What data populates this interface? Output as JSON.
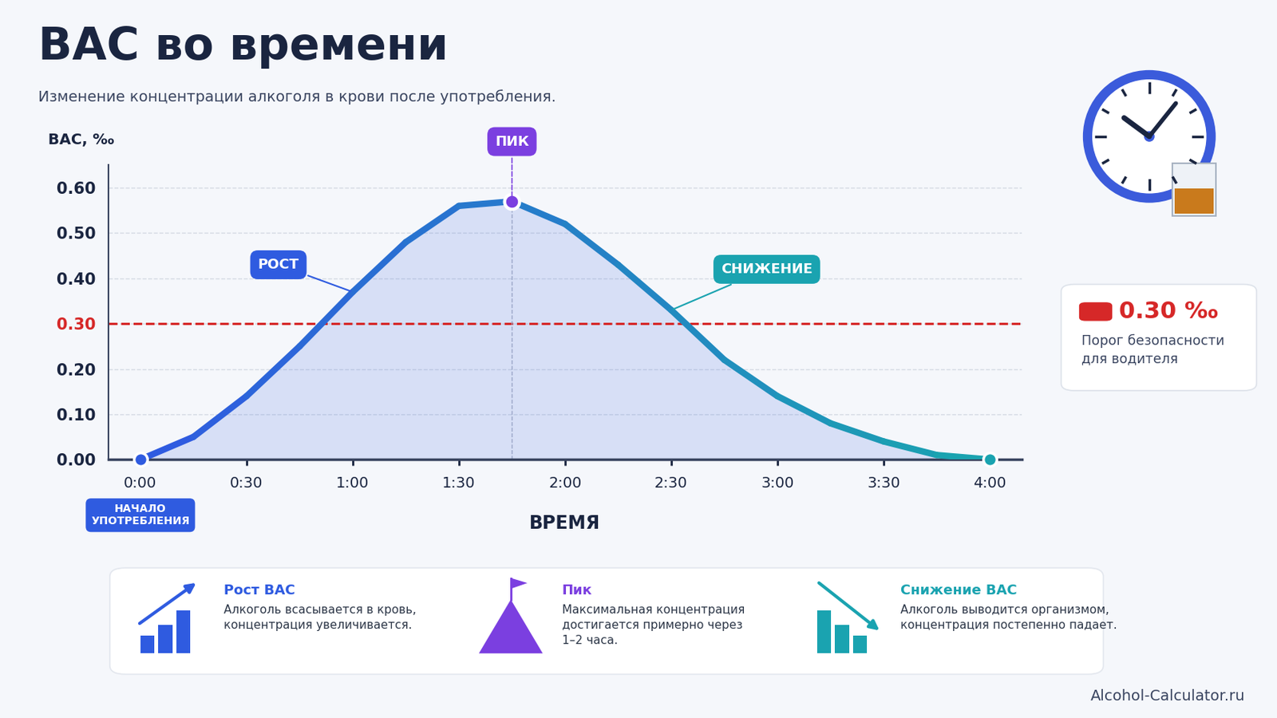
{
  "chart_data": {
    "type": "line",
    "title": "BAC во времени",
    "subtitle": "Изменение концентрации алкоголя в крови после употребления.",
    "x_label": "ВРЕМЯ",
    "y_label": "BAC, ‰",
    "x": [
      0,
      0.25,
      0.5,
      0.75,
      1,
      1.25,
      1.5,
      1.75,
      2,
      2.25,
      2.5,
      2.75,
      3,
      3.25,
      3.5,
      3.75,
      4
    ],
    "values": [
      0.0,
      0.05,
      0.14,
      0.25,
      0.37,
      0.48,
      0.56,
      0.57,
      0.52,
      0.43,
      0.33,
      0.22,
      0.14,
      0.08,
      0.04,
      0.01,
      0.0
    ],
    "xlim": [
      -0.15,
      4.15
    ],
    "ylim": [
      0,
      0.65
    ],
    "xticks": [
      {
        "value": 0,
        "label": "0:00"
      },
      {
        "value": 0.5,
        "label": "0:30"
      },
      {
        "value": 1,
        "label": "1:00"
      },
      {
        "value": 1.5,
        "label": "1:30"
      },
      {
        "value": 2,
        "label": "2:00"
      },
      {
        "value": 2.5,
        "label": "2:30"
      },
      {
        "value": 3,
        "label": "3:00"
      },
      {
        "value": 3.5,
        "label": "3:30"
      },
      {
        "value": 4,
        "label": "4:00"
      }
    ],
    "yticks": [
      {
        "value": 0,
        "label": "0.00"
      },
      {
        "value": 0.1,
        "label": "0.10"
      },
      {
        "value": 0.2,
        "label": "0.20"
      },
      {
        "value": 0.3,
        "label": "0.30"
      },
      {
        "value": 0.4,
        "label": "0.40"
      },
      {
        "value": 0.5,
        "label": "0.50"
      },
      {
        "value": 0.6,
        "label": "0.60"
      }
    ],
    "grid": true,
    "color": "#2f5be0",
    "annotations": {
      "start": "НАЧАЛО\nУПОТРЕБЛЕНИЯ",
      "rise": "РОСТ",
      "peak": "ПИК",
      "decline": "СНИЖЕНИЕ"
    },
    "reference_line": {
      "value": 0.3,
      "label": "0.30 ‰",
      "text": "Порог безопасности\nдля водителя"
    },
    "cards": [
      {
        "title": "Рост BAC",
        "text": "Алкоголь всасывается в кровь,\nконцентрация увеличивается."
      },
      {
        "title": "Пик",
        "text": "Максимальная концентрация\nдостигается примерно через\n1–2 часа."
      },
      {
        "title": "Снижение BAC",
        "text": "Алкоголь выводится организмом,\nконцентрация постепенно падает."
      }
    ],
    "source": "Alcohol-Calculator.ru"
  }
}
